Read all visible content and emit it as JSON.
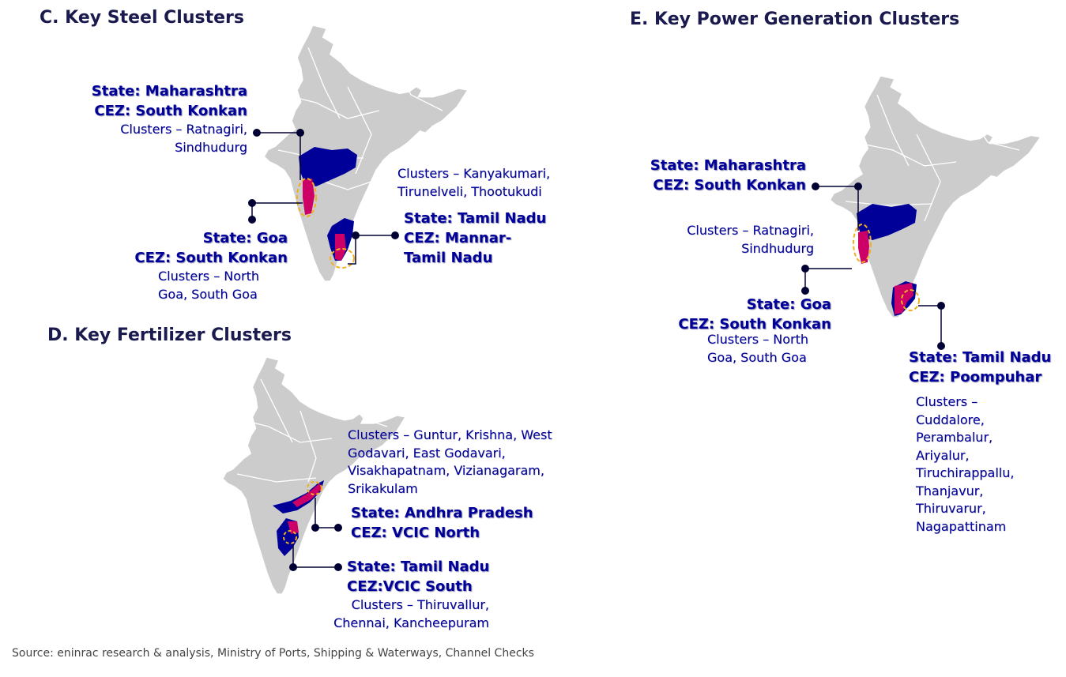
{
  "colors": {
    "map_gray": "#cccccc",
    "state_blue": "#000099",
    "cez_magenta": "#cc0066",
    "highlight_dash": "#f2b01e",
    "connector": "#000033"
  },
  "steel": {
    "title": "C. Key Steel Clusters",
    "maharashtra": {
      "state": "State: Maharashtra",
      "cez": "CEZ: South Konkan",
      "clusters_1": "Clusters – Ratnagiri,",
      "clusters_2": "Sindhudurg"
    },
    "goa": {
      "state": "State: Goa",
      "cez": "CEZ: South Konkan",
      "clusters_1": "Clusters – North",
      "clusters_2": "Goa, South Goa"
    },
    "tamil_nadu": {
      "state": "State: Tamil Nadu",
      "cez_1": "CEZ: Mannar-",
      "cez_2": "Tamil Nadu",
      "clusters_1": "Clusters – Kanyakumari,",
      "clusters_2": "Tirunelveli, Thootukudi"
    }
  },
  "fertilizer": {
    "title": "D. Key Fertilizer Clusters",
    "andhra_pradesh": {
      "state": "State: Andhra Pradesh",
      "cez": "CEZ: VCIC North",
      "clusters_1": "Clusters – Guntur, Krishna, West",
      "clusters_2": "Godavari, East Godavari,",
      "clusters_3": "Visakhapatnam, Vizianagaram,",
      "clusters_4": "Srikakulam"
    },
    "tamil_nadu": {
      "state": "State: Tamil Nadu",
      "cez": "CEZ:VCIC South",
      "clusters_1": "Clusters – Thiruvallur,",
      "clusters_2": "Chennai, Kancheepuram"
    }
  },
  "power": {
    "title": "E. Key Power Generation Clusters",
    "maharashtra": {
      "state": "State: Maharashtra",
      "cez": "CEZ: South Konkan",
      "clusters_1": "Clusters – Ratnagiri,",
      "clusters_2": "Sindhudurg"
    },
    "goa": {
      "state": "State: Goa",
      "cez": "CEZ: South Konkan",
      "clusters_1": "Clusters – North",
      "clusters_2": "Goa, South Goa"
    },
    "tamil_nadu": {
      "state": "State: Tamil Nadu",
      "cez": "CEZ: Poompuhar",
      "clusters": [
        "Clusters –",
        "Cuddalore,",
        "Perambalur,",
        "Ariyalur,",
        "Tiruchirappallu,",
        "Thanjavur,",
        "Thiruvarur,",
        "Nagapattinam"
      ]
    }
  },
  "source": "Source: eninrac research & analysis, Ministry of Ports, Shipping & Waterways, Channel Checks"
}
